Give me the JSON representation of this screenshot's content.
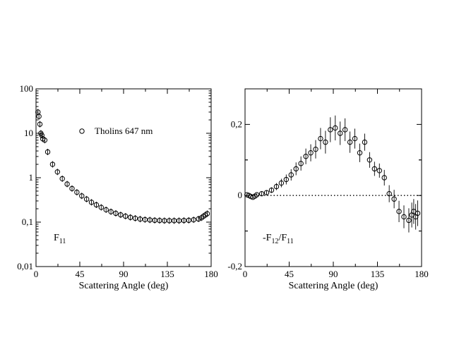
{
  "chart_data": [
    {
      "type": "scatter",
      "panel": "left",
      "xlabel": "Scattering Angle (deg)",
      "ylabel": "",
      "panel_label_main": "F",
      "panel_label_sub": "11",
      "xlim": [
        0,
        180
      ],
      "ylim": [
        0.01,
        100
      ],
      "yscale": "log",
      "xticks": [
        0,
        45,
        90,
        135,
        180
      ],
      "yticks": [
        0.01,
        0.1,
        1,
        10,
        100
      ],
      "ytick_labels": [
        "0,01",
        "0,1",
        "1",
        "10",
        "100"
      ],
      "legend": {
        "label": "Tholins 647 nm",
        "placement": "upper-middle",
        "marker": "open-circle"
      },
      "series": [
        {
          "name": "Tholins 647 nm",
          "x": [
            2,
            3,
            4,
            5,
            6,
            7,
            9,
            12,
            17,
            22,
            27,
            32,
            37,
            42,
            47,
            52,
            57,
            62,
            67,
            72,
            77,
            82,
            87,
            92,
            97,
            102,
            107,
            112,
            117,
            122,
            127,
            132,
            137,
            142,
            147,
            152,
            157,
            162,
            167,
            170,
            172,
            174,
            176
          ],
          "y": [
            30,
            24,
            16,
            10,
            9,
            7.5,
            7,
            3.8,
            2.0,
            1.35,
            0.95,
            0.72,
            0.57,
            0.47,
            0.39,
            0.33,
            0.28,
            0.245,
            0.215,
            0.19,
            0.172,
            0.158,
            0.146,
            0.136,
            0.128,
            0.122,
            0.117,
            0.114,
            0.112,
            0.11,
            0.109,
            0.108,
            0.108,
            0.108,
            0.108,
            0.109,
            0.11,
            0.113,
            0.118,
            0.125,
            0.135,
            0.145,
            0.155
          ]
        }
      ]
    },
    {
      "type": "scatter",
      "panel": "right",
      "xlabel": "Scattering Angle (deg)",
      "ylabel": "",
      "panel_label_main": "-F",
      "panel_label_sub1": "12",
      "panel_label_mid": "/F",
      "panel_label_sub2": "11",
      "xlim": [
        0,
        180
      ],
      "ylim": [
        -0.2,
        0.3
      ],
      "yscale": "linear",
      "xticks": [
        0,
        45,
        90,
        135,
        180
      ],
      "yticks": [
        -0.2,
        0,
        0.2
      ],
      "ytick_labels": [
        "-0,2",
        "0",
        "0,2"
      ],
      "zero_line": "dotted",
      "series": [
        {
          "name": "",
          "x": [
            2,
            4,
            6,
            8,
            10,
            12,
            17,
            22,
            27,
            32,
            37,
            42,
            47,
            52,
            57,
            62,
            67,
            72,
            77,
            82,
            87,
            92,
            97,
            102,
            107,
            112,
            117,
            122,
            127,
            132,
            137,
            142,
            147,
            152,
            157,
            162,
            167,
            170,
            172,
            174,
            176
          ],
          "y": [
            0.002,
            0.0,
            -0.003,
            -0.005,
            -0.002,
            0.002,
            0.005,
            0.008,
            0.015,
            0.025,
            0.035,
            0.045,
            0.058,
            0.075,
            0.09,
            0.11,
            0.12,
            0.13,
            0.16,
            0.15,
            0.185,
            0.19,
            0.175,
            0.185,
            0.15,
            0.16,
            0.12,
            0.15,
            0.1,
            0.075,
            0.07,
            0.05,
            0.005,
            -0.01,
            -0.045,
            -0.06,
            -0.07,
            -0.055,
            -0.045,
            -0.06,
            -0.05
          ],
          "error": [
            0.004,
            0.004,
            0.004,
            0.004,
            0.004,
            0.004,
            0.005,
            0.006,
            0.008,
            0.01,
            0.012,
            0.014,
            0.016,
            0.018,
            0.02,
            0.022,
            0.024,
            0.026,
            0.03,
            0.032,
            0.035,
            0.035,
            0.033,
            0.032,
            0.03,
            0.028,
            0.026,
            0.024,
            0.022,
            0.02,
            0.02,
            0.022,
            0.024,
            0.026,
            0.03,
            0.032,
            0.034,
            0.035,
            0.035,
            0.036,
            0.036
          ]
        }
      ]
    }
  ]
}
